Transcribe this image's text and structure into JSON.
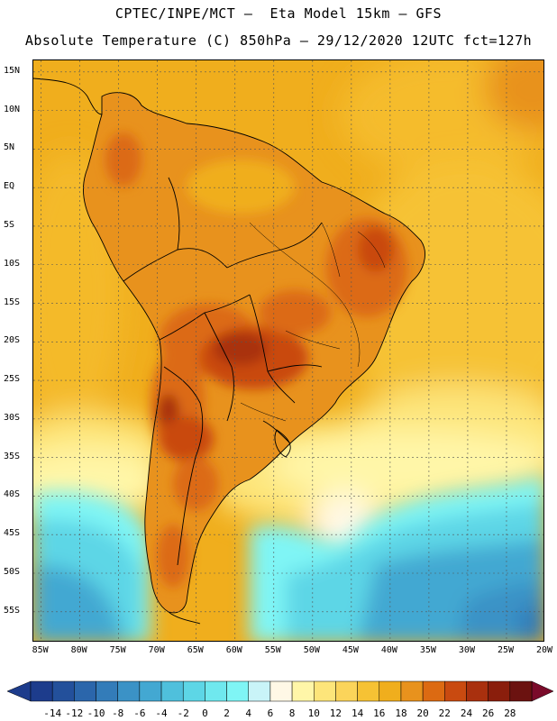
{
  "title_line1": "CPTEC/INPE/MCT –  Eta Model 15km – GFS",
  "title_line2": "Absolute Temperature (C) 850hPa – 29/12/2020 12UTC fct=127h",
  "lat_labels": [
    "15N",
    "10N",
    "5N",
    "EQ",
    "5S",
    "10S",
    "15S",
    "20S",
    "25S",
    "30S",
    "35S",
    "40S",
    "45S",
    "50S",
    "55S"
  ],
  "lon_labels": [
    "85W",
    "80W",
    "75W",
    "70W",
    "65W",
    "60W",
    "55W",
    "50W",
    "45W",
    "40W",
    "35W",
    "30W",
    "25W",
    "20W"
  ],
  "colorbar": {
    "labels": [
      "-14",
      "-12",
      "-10",
      "-8",
      "-6",
      "-4",
      "-2",
      "0",
      "2",
      "4",
      "6",
      "8",
      "10",
      "12",
      "14",
      "16",
      "18",
      "20",
      "22",
      "24",
      "26",
      "28"
    ],
    "colors": [
      "#1d3c8c",
      "#23509b",
      "#2b66ab",
      "#337cb9",
      "#3b92c6",
      "#43a8d2",
      "#4fc0dc",
      "#5dd6e6",
      "#6fe8ee",
      "#7ff5f5",
      "#c9f4f8",
      "#fff8e6",
      "#fff6a8",
      "#fde57a",
      "#fbd45a",
      "#f6c234",
      "#f0ae1d",
      "#e8921d",
      "#dc6a12",
      "#c94a10",
      "#a9300e",
      "#8a1e0c",
      "#6b1210"
    ]
  },
  "map": {
    "domain": {
      "lon_min": -86,
      "lon_max": -20,
      "lat_min": -59,
      "lat_max": 16.5
    },
    "colors": {
      "ocean_warm": "#f0ae1d",
      "ocean_mid": "#f6c234",
      "ocean_cool": "#fde57a",
      "ocean_pale": "#fff6a8",
      "cream": "#fff8e6",
      "cyan_light": "#7ff5f5",
      "cyan": "#5dd6e6",
      "blue_1": "#43a8d2",
      "blue_2": "#3b92c6",
      "land_hot": "#dc6a12",
      "land_hotter": "#c94a10",
      "land_hottest": "#a9300e",
      "land_warm": "#e8921d"
    }
  }
}
